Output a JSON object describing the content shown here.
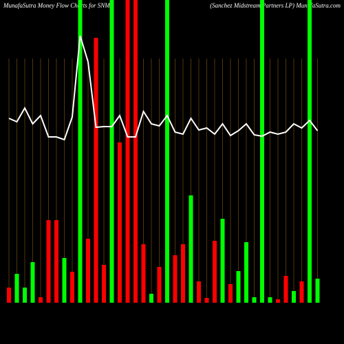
{
  "chart_data": {
    "type": "bar",
    "title": "MunafaSutra  Money Flow  Charts for SNMP",
    "subtitle": "(Sanchez Midstream Partners LP) MunafaSutra.com",
    "categories": [
      null,
      null,
      null,
      null,
      null,
      null,
      null,
      null,
      null,
      null,
      null,
      null,
      null,
      null,
      null,
      null,
      null,
      null,
      null,
      null,
      null,
      null,
      null,
      null,
      null,
      null,
      null,
      null,
      null,
      null,
      null,
      null,
      null,
      null,
      null,
      null,
      null,
      null,
      null,
      null
    ],
    "ylim": [
      0,
      440
    ],
    "series": [
      {
        "name": "flow",
        "colors": [
          "#ff0000",
          "#00ff00",
          "#00ff00",
          "#00ff00",
          "#ff0000",
          "#ff0000",
          "#ff0000",
          "#00ff00",
          "#ff0000",
          "#00ff00",
          "#ff0000",
          "#ff0000",
          "#ff0000",
          "#00ff00",
          "#ff0000",
          "#ff0000",
          "#ff0000",
          "#ff0000",
          "#00ff00",
          "#ff0000",
          "#00ff00",
          "#ff0000",
          "#ff0000",
          "#00ff00",
          "#ff0000",
          "#ff0000",
          "#ff0000",
          "#00ff00",
          "#ff0000",
          "#00ff00",
          "#00ff00",
          "#00ff00",
          "#00ff00",
          "#00ff00",
          "#ff0000",
          "#ff0000",
          "#00ff00",
          "#ff0000",
          "#00ff00",
          "#00ff00"
        ],
        "values": [
          22,
          42,
          22,
          59,
          8,
          120,
          120,
          65,
          45,
          440,
          93,
          385,
          55,
          440,
          233,
          440,
          440,
          85,
          13,
          52,
          440,
          69,
          85,
          156,
          31,
          7,
          90,
          122,
          27,
          46,
          88,
          8,
          440,
          8,
          5,
          39,
          17,
          31,
          440,
          35
        ]
      },
      {
        "name": "price",
        "color": "#ffffff",
        "values": [
          268,
          263,
          283,
          260,
          272,
          241,
          241,
          237,
          270,
          388,
          350,
          255,
          256,
          256,
          272,
          241,
          241,
          278,
          260,
          257,
          272,
          248,
          245,
          268,
          251,
          254,
          245,
          260,
          243,
          250,
          260,
          244,
          242,
          248,
          245,
          248,
          260,
          254,
          265,
          250
        ]
      }
    ]
  }
}
